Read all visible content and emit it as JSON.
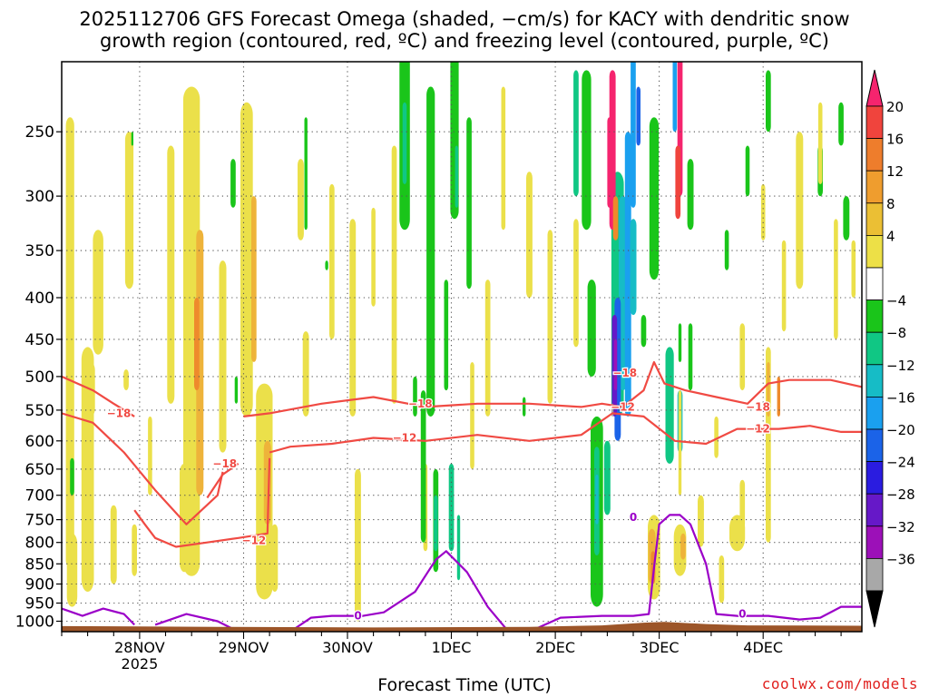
{
  "title": {
    "line1": "2025112706 GFS Forecast Omega (shaded, −cm/s) for KACY with dendritic snow",
    "line2": "growth region (contoured, red, ºC) and freezing level (contoured, purple, ºC)"
  },
  "xaxis_title": "Forecast Time (UTC)",
  "credit": "coolwx.com/models",
  "colors": {
    "dgz": "#f04a43",
    "freezing": "#9b00c8",
    "terrain": "#9c5528"
  },
  "chart_data": {
    "type": "heatmap",
    "title": "2025112706 GFS Forecast Omega (shaded, −cm/s) for KACY with dendritic snow growth region (contoured, red, ºC) and freezing level (contoured, purple, ºC)",
    "xlabel": "Forecast Time (UTC)",
    "ylabel": "",
    "x_range_days": [
      0,
      7.7
    ],
    "y_scale": "log-pressure (hPa)",
    "ylim": [
      1030,
      205
    ],
    "y_ticks": [
      250,
      300,
      350,
      400,
      450,
      500,
      550,
      600,
      650,
      700,
      750,
      800,
      850,
      900,
      950,
      1000
    ],
    "x_ticks": [
      {
        "label": "28NOV",
        "sub": "2025",
        "day": 0.75
      },
      {
        "label": "29NOV",
        "sub": "",
        "day": 1.75
      },
      {
        "label": "30NOV",
        "sub": "",
        "day": 2.75
      },
      {
        "label": "1DEC",
        "sub": "",
        "day": 3.75
      },
      {
        "label": "2DEC",
        "sub": "",
        "day": 4.75
      },
      {
        "label": "3DEC",
        "sub": "",
        "day": 5.75
      },
      {
        "label": "4DEC",
        "sub": "",
        "day": 6.75
      }
    ],
    "colorbar": {
      "labels": [
        "20",
        "16",
        "12",
        "8",
        "4",
        "−4",
        "−8",
        "−12",
        "−16",
        "−20",
        "−24",
        "−28",
        "−32",
        "−36"
      ],
      "colors": [
        "#f5246e",
        "#f0443d",
        "#ee7d2c",
        "#ef9d2e",
        "#ebbf34",
        "#ede047",
        "#ffffff",
        "#1ac51a",
        "#10c784",
        "#16bcc6",
        "#1aa0ef",
        "#1b63e8",
        "#2a1ce0",
        "#6618c8",
        "#9c10b8",
        "#a8a8a8",
        "#000000"
      ]
    },
    "series": [
      {
        "name": "-18",
        "segments": [
          [
            [
              0.0,
              500
            ],
            [
              0.3,
              520
            ],
            [
              0.5,
              540
            ],
            [
              0.7,
              560
            ]
          ],
          [
            [
              1.4,
              705
            ],
            [
              1.55,
              660
            ],
            [
              1.7,
              640
            ]
          ],
          [
            [
              1.75,
              560
            ],
            [
              2.0,
              555
            ],
            [
              2.5,
              540
            ],
            [
              3.0,
              530
            ],
            [
              3.5,
              545
            ],
            [
              4.0,
              540
            ],
            [
              4.5,
              540
            ],
            [
              5.0,
              545
            ],
            [
              5.2,
              540
            ],
            [
              5.4,
              545
            ],
            [
              5.6,
              520
            ],
            [
              5.7,
              480
            ],
            [
              5.8,
              510
            ],
            [
              6.0,
              520
            ],
            [
              6.3,
              530
            ],
            [
              6.6,
              540
            ],
            [
              6.8,
              510
            ],
            [
              7.0,
              505
            ],
            [
              7.4,
              505
            ],
            [
              7.7,
              515
            ]
          ]
        ]
      },
      {
        "name": "-12",
        "segments": [
          [
            [
              0.0,
              555
            ],
            [
              0.3,
              570
            ],
            [
              0.6,
              620
            ],
            [
              0.9,
              690
            ],
            [
              1.2,
              760
            ],
            [
              1.5,
              700
            ],
            [
              1.55,
              655
            ]
          ],
          [
            [
              0.7,
              730
            ],
            [
              0.8,
              760
            ],
            [
              0.9,
              790
            ],
            [
              1.1,
              810
            ],
            [
              1.4,
              800
            ],
            [
              1.7,
              790
            ],
            [
              1.98,
              780
            ],
            [
              2.0,
              630
            ]
          ],
          [
            [
              2.0,
              620
            ],
            [
              2.2,
              610
            ],
            [
              2.6,
              605
            ],
            [
              3.0,
              595
            ],
            [
              3.5,
              600
            ],
            [
              4.0,
              590
            ],
            [
              4.5,
              600
            ],
            [
              5.0,
              590
            ],
            [
              5.3,
              555
            ],
            [
              5.6,
              560
            ],
            [
              5.9,
              600
            ],
            [
              6.2,
              605
            ],
            [
              6.5,
              580
            ],
            [
              6.9,
              580
            ],
            [
              7.2,
              575
            ],
            [
              7.5,
              585
            ],
            [
              7.7,
              585
            ]
          ]
        ]
      },
      {
        "name": "0",
        "segments": [
          [
            [
              0.0,
              965
            ],
            [
              0.2,
              985
            ],
            [
              0.4,
              965
            ],
            [
              0.6,
              980
            ],
            [
              0.7,
              1010
            ]
          ],
          [
            [
              0.9,
              1010
            ],
            [
              1.2,
              980
            ],
            [
              1.5,
              1000
            ],
            [
              1.7,
              1030
            ]
          ],
          [
            [
              2.2,
              1030
            ],
            [
              2.4,
              990
            ],
            [
              2.6,
              985
            ],
            [
              2.9,
              985
            ],
            [
              3.1,
              975
            ],
            [
              3.4,
              920
            ],
            [
              3.6,
              840
            ],
            [
              3.7,
              820
            ],
            [
              3.9,
              870
            ],
            [
              4.1,
              960
            ],
            [
              4.3,
              1030
            ]
          ],
          [
            [
              4.5,
              1030
            ],
            [
              4.8,
              990
            ],
            [
              5.2,
              985
            ],
            [
              5.5,
              985
            ],
            [
              5.65,
              980
            ],
            [
              5.7,
              860
            ],
            [
              5.75,
              760
            ],
            [
              5.85,
              740
            ],
            [
              5.95,
              740
            ],
            [
              6.05,
              760
            ],
            [
              6.2,
              850
            ],
            [
              6.3,
              980
            ],
            [
              6.5,
              985
            ],
            [
              6.8,
              985
            ],
            [
              7.1,
              995
            ],
            [
              7.3,
              990
            ],
            [
              7.5,
              960
            ],
            [
              7.7,
              960
            ]
          ]
        ]
      }
    ]
  }
}
